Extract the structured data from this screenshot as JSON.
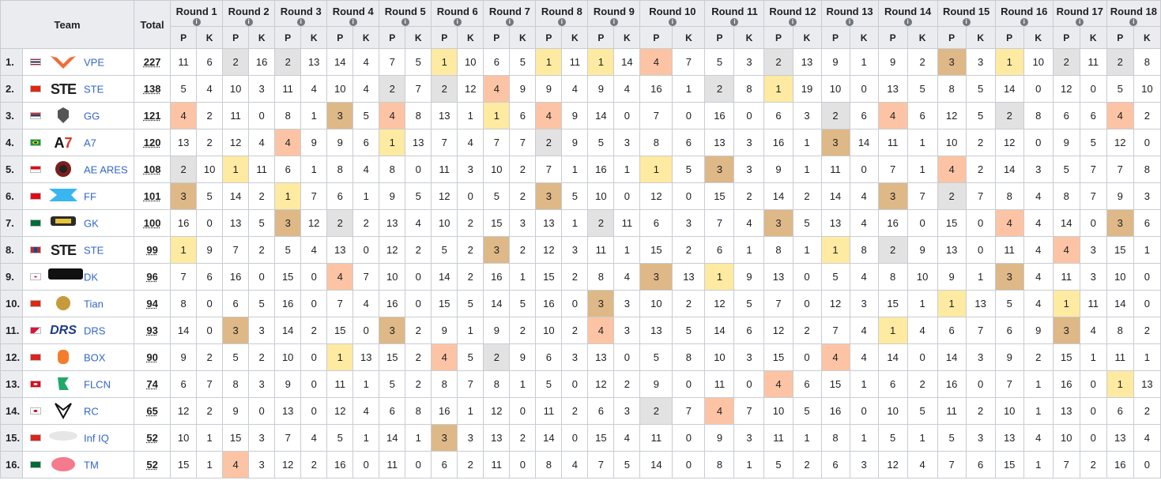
{
  "header": {
    "team": "Team",
    "total": "Total",
    "placement_abbr": "P",
    "kills_abbr": "K",
    "rounds": [
      "Round 1",
      "Round 2",
      "Round 3",
      "Round 4",
      "Round 5",
      "Round 6",
      "Round 7",
      "Round 8",
      "Round 9",
      "Round 10",
      "Round 11",
      "Round 12",
      "Round 13",
      "Round 14",
      "Round 15",
      "Round 16",
      "Round 17",
      "Round 18"
    ]
  },
  "placement_colors": {
    "1": "#ffeaa1",
    "2": "#e2e2e2",
    "3": "#deb887",
    "4": "#fcc4a4"
  },
  "rows": [
    {
      "rank": "1.",
      "flag": "thailand",
      "team": "VPE",
      "total": "227",
      "scores": [
        11,
        6,
        2,
        16,
        2,
        13,
        14,
        4,
        7,
        5,
        1,
        10,
        6,
        5,
        1,
        11,
        1,
        14,
        4,
        7,
        5,
        3,
        2,
        13,
        9,
        1,
        9,
        2,
        3,
        3,
        1,
        10,
        2,
        11,
        2,
        8
      ]
    },
    {
      "rank": "2.",
      "flag": "china",
      "team": "STE",
      "total": "138",
      "scores": [
        5,
        4,
        10,
        3,
        11,
        4,
        10,
        4,
        2,
        7,
        2,
        12,
        4,
        9,
        9,
        4,
        9,
        4,
        16,
        1,
        2,
        8,
        1,
        19,
        10,
        0,
        13,
        5,
        8,
        5,
        14,
        0,
        12,
        0,
        5,
        10
      ]
    },
    {
      "rank": "3.",
      "flag": "serbia",
      "team": "GG",
      "total": "121",
      "scores": [
        4,
        2,
        11,
        0,
        8,
        1,
        3,
        5,
        4,
        8,
        13,
        1,
        1,
        6,
        4,
        9,
        14,
        0,
        7,
        0,
        16,
        0,
        6,
        3,
        2,
        6,
        4,
        6,
        12,
        5,
        2,
        8,
        6,
        6,
        4,
        2
      ]
    },
    {
      "rank": "4.",
      "flag": "brazil",
      "team": "A7",
      "total": "120",
      "scores": [
        13,
        2,
        12,
        4,
        4,
        9,
        9,
        6,
        1,
        13,
        7,
        4,
        7,
        7,
        2,
        9,
        5,
        3,
        8,
        6,
        13,
        3,
        16,
        1,
        3,
        14,
        11,
        1,
        10,
        2,
        12,
        0,
        9,
        5,
        12,
        0
      ]
    },
    {
      "rank": "5.",
      "flag": "indonesia",
      "team": "AE ARES",
      "total": "108",
      "scores": [
        2,
        10,
        1,
        11,
        6,
        1,
        8,
        4,
        8,
        0,
        11,
        3,
        10,
        2,
        7,
        1,
        16,
        1,
        1,
        5,
        3,
        3,
        9,
        1,
        11,
        0,
        7,
        1,
        4,
        2,
        14,
        3,
        5,
        7,
        7,
        8
      ]
    },
    {
      "rank": "6.",
      "flag": "turkey",
      "team": "FF",
      "total": "101",
      "scores": [
        3,
        5,
        14,
        2,
        1,
        7,
        6,
        1,
        9,
        5,
        12,
        0,
        5,
        2,
        3,
        5,
        10,
        0,
        12,
        0,
        15,
        2,
        14,
        2,
        14,
        4,
        3,
        7,
        2,
        7,
        8,
        4,
        8,
        7,
        9,
        3
      ]
    },
    {
      "rank": "7.",
      "flag": "saudi",
      "team": "GK",
      "total": "100",
      "scores": [
        16,
        0,
        13,
        5,
        3,
        12,
        2,
        2,
        13,
        4,
        10,
        2,
        15,
        3,
        13,
        1,
        2,
        11,
        6,
        3,
        7,
        4,
        3,
        5,
        13,
        4,
        16,
        0,
        15,
        0,
        4,
        4,
        14,
        0,
        3,
        6
      ]
    },
    {
      "rank": "8.",
      "flag": "mongolia",
      "team": "STE",
      "total": "99",
      "scores": [
        1,
        9,
        7,
        2,
        5,
        4,
        13,
        0,
        12,
        2,
        5,
        2,
        3,
        2,
        12,
        3,
        11,
        1,
        15,
        2,
        6,
        1,
        8,
        1,
        1,
        8,
        2,
        9,
        13,
        0,
        11,
        4,
        4,
        3,
        15,
        1
      ]
    },
    {
      "rank": "9.",
      "flag": "korea",
      "team": "DK",
      "total": "96",
      "scores": [
        7,
        6,
        16,
        0,
        15,
        0,
        4,
        7,
        10,
        0,
        14,
        2,
        16,
        1,
        15,
        2,
        8,
        4,
        3,
        13,
        1,
        9,
        13,
        0,
        5,
        4,
        8,
        10,
        9,
        1,
        3,
        4,
        11,
        3,
        10,
        0
      ]
    },
    {
      "rank": "10.",
      "flag": "china",
      "team": "Tian",
      "total": "94",
      "scores": [
        8,
        0,
        6,
        5,
        16,
        0,
        7,
        4,
        16,
        0,
        15,
        5,
        14,
        5,
        16,
        0,
        3,
        3,
        10,
        2,
        12,
        5,
        7,
        0,
        12,
        3,
        15,
        1,
        1,
        13,
        5,
        4,
        1,
        11,
        14,
        0
      ]
    },
    {
      "rank": "11.",
      "flag": "nepal",
      "team": "DRS",
      "total": "93",
      "scores": [
        14,
        0,
        3,
        3,
        14,
        2,
        15,
        0,
        3,
        2,
        9,
        1,
        9,
        2,
        10,
        2,
        4,
        3,
        13,
        5,
        14,
        6,
        12,
        2,
        7,
        4,
        1,
        4,
        6,
        7,
        6,
        9,
        3,
        4,
        8,
        2
      ]
    },
    {
      "rank": "12.",
      "flag": "vietnam",
      "team": "BOX",
      "total": "90",
      "scores": [
        9,
        2,
        5,
        2,
        10,
        0,
        1,
        13,
        15,
        2,
        4,
        5,
        2,
        9,
        6,
        3,
        13,
        0,
        5,
        8,
        10,
        3,
        15,
        0,
        4,
        4,
        14,
        0,
        14,
        3,
        9,
        2,
        15,
        1,
        11,
        1
      ]
    },
    {
      "rank": "13.",
      "flag": "tunisia",
      "team": "FLCN",
      "total": "74",
      "scores": [
        6,
        7,
        8,
        3,
        9,
        0,
        11,
        1,
        5,
        2,
        8,
        7,
        8,
        1,
        5,
        0,
        12,
        2,
        9,
        0,
        11,
        0,
        4,
        6,
        15,
        1,
        6,
        2,
        16,
        0,
        7,
        1,
        16,
        0,
        1,
        13
      ]
    },
    {
      "rank": "14.",
      "flag": "japan",
      "team": "RC",
      "total": "65",
      "scores": [
        12,
        2,
        9,
        0,
        13,
        0,
        12,
        4,
        6,
        8,
        16,
        1,
        12,
        0,
        11,
        2,
        6,
        3,
        2,
        7,
        4,
        7,
        10,
        5,
        16,
        0,
        10,
        5,
        11,
        2,
        10,
        1,
        13,
        0,
        6,
        2
      ]
    },
    {
      "rank": "15.",
      "flag": "vietnam",
      "team": "Inf IQ",
      "total": "52",
      "scores": [
        10,
        1,
        15,
        3,
        7,
        4,
        5,
        1,
        14,
        1,
        3,
        3,
        13,
        2,
        14,
        0,
        15,
        4,
        11,
        0,
        9,
        3,
        11,
        1,
        8,
        1,
        5,
        1,
        5,
        3,
        13,
        4,
        10,
        0,
        13,
        4
      ]
    },
    {
      "rank": "16.",
      "flag": "saudi",
      "team": "TM",
      "total": "52",
      "scores": [
        15,
        1,
        4,
        3,
        12,
        2,
        16,
        0,
        11,
        0,
        6,
        2,
        11,
        0,
        8,
        4,
        7,
        5,
        14,
        0,
        8,
        1,
        5,
        2,
        6,
        3,
        12,
        4,
        7,
        6,
        15,
        1,
        7,
        2,
        16,
        0
      ]
    }
  ]
}
